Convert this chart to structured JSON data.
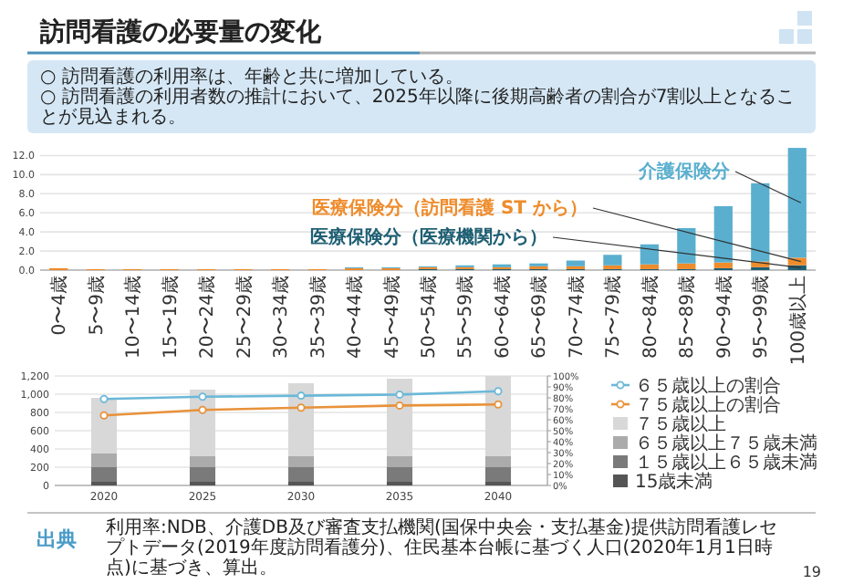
{
  "chart_data": [
    {
      "type": "bar",
      "stacked": true,
      "title": "訪問看護の必要量の変化",
      "annotations": [
        "○ 訪問看護の利用率は、年齢と共に増加している。",
        "○ 訪問看護の利用者数の推計において、2025年以降に後期高齢者の割合が7割以上となることが見込まれる。"
      ],
      "categories": [
        "0〜4歳",
        "5〜9歳",
        "10〜14歳",
        "15〜19歳",
        "20〜24歳",
        "25〜29歳",
        "30〜34歳",
        "35〜39歳",
        "40〜44歳",
        "45〜49歳",
        "50〜54歳",
        "55〜59歳",
        "60〜64歳",
        "65〜69歳",
        "70〜74歳",
        "75〜79歳",
        "80〜84歳",
        "85〜89歳",
        "90〜94歳",
        "95〜99歳",
        "100歳以上"
      ],
      "series": [
        {
          "name": "医療保険分（医療機関から）",
          "color": "#1f5f73",
          "values": [
            0,
            0,
            0,
            0,
            0,
            0,
            0,
            0,
            0,
            0,
            0.1,
            0.1,
            0.1,
            0.1,
            0.1,
            0.1,
            0.1,
            0.1,
            0.2,
            0.3,
            0.5
          ]
        },
        {
          "name": "医療保険分（訪問看護 ST から）",
          "color": "#ee8c2c",
          "values": [
            0.2,
            0.1,
            0.1,
            0.1,
            0.1,
            0.1,
            0.1,
            0.1,
            0.2,
            0.2,
            0.2,
            0.2,
            0.2,
            0.3,
            0.3,
            0.4,
            0.5,
            0.6,
            0.6,
            0.6,
            0.8
          ]
        },
        {
          "name": "介護保険分",
          "color": "#5aafcf",
          "values": [
            0,
            0,
            0,
            0,
            0,
            0,
            0,
            0,
            0.1,
            0.1,
            0.1,
            0.2,
            0.3,
            0.3,
            0.6,
            1.1,
            2.1,
            3.7,
            5.9,
            8.2,
            11.5
          ]
        }
      ],
      "ylim": [
        0,
        13
      ],
      "yticks": [
        {
          "value": 0,
          "label": "0.0"
        },
        {
          "value": 2,
          "label": "2.0"
        },
        {
          "value": 4,
          "label": "4.0"
        },
        {
          "value": 6,
          "label": "6.0"
        },
        {
          "value": 8,
          "label": "8.0"
        },
        {
          "value": 10,
          "label": "10.0"
        },
        {
          "value": 12,
          "label": "12.0"
        }
      ],
      "grid": "y",
      "legend": false
    },
    {
      "type": "bar",
      "stacked": true,
      "categories": [
        "2020",
        "2025",
        "2030",
        "2035",
        "2040"
      ],
      "series": [
        {
          "name": "15歳未満",
          "color": "#555555",
          "values": [
            40,
            40,
            40,
            40,
            40
          ]
        },
        {
          "name": "１５歳以上６５歳未満",
          "color": "#7a7a7a",
          "values": [
            160,
            160,
            160,
            160,
            160
          ]
        },
        {
          "name": "６５歳以上７５歳未満",
          "color": "#ababab",
          "values": [
            150,
            120,
            120,
            120,
            120
          ]
        },
        {
          "name": "７５歳以上",
          "color": "#d8d8d8",
          "values": [
            610,
            730,
            800,
            850,
            880
          ]
        },
        {
          "name": "６５歳以上の割合",
          "type": "line",
          "axis": "y2",
          "marker": "circle",
          "color": "#6bb8d8",
          "values": [
            79,
            81,
            82,
            83,
            86
          ]
        },
        {
          "name": "７５歳以上の割合",
          "type": "line",
          "axis": "y2",
          "marker": "circle",
          "color": "#e8923a",
          "values": [
            64,
            69,
            71,
            73,
            74
          ]
        }
      ],
      "ylim": [
        0,
        1200
      ],
      "yticks": [
        0,
        200,
        400,
        600,
        800,
        {
          "value": 1000,
          "label": "1,000"
        },
        {
          "value": 1200,
          "label": "1,200"
        }
      ],
      "y2lim": [
        0,
        100
      ],
      "y2ticks": [
        {
          "value": 0,
          "label": "0%"
        },
        {
          "value": 10,
          "label": "10%"
        },
        {
          "value": 20,
          "label": "20%"
        },
        {
          "value": 30,
          "label": "30%"
        },
        {
          "value": 40,
          "label": "40%"
        },
        {
          "value": 50,
          "label": "50%"
        },
        {
          "value": 60,
          "label": "60%"
        },
        {
          "value": 70,
          "label": "70%"
        },
        {
          "value": 80,
          "label": "80%"
        },
        {
          "value": 90,
          "label": "90%"
        },
        {
          "value": 100,
          "label": "100%"
        }
      ],
      "grid": "y",
      "legend": "right",
      "annotations": [
        "出典",
        "利用率:NDB、介護DB及び審査支払機関(国保中央会・支払基金)提供訪問看護レセプトデータ(2019年度訪問看護分)、住民基本台帳に基づく人口(2020年1月1日時点)に基づき、算出。",
        "19"
      ]
    }
  ]
}
